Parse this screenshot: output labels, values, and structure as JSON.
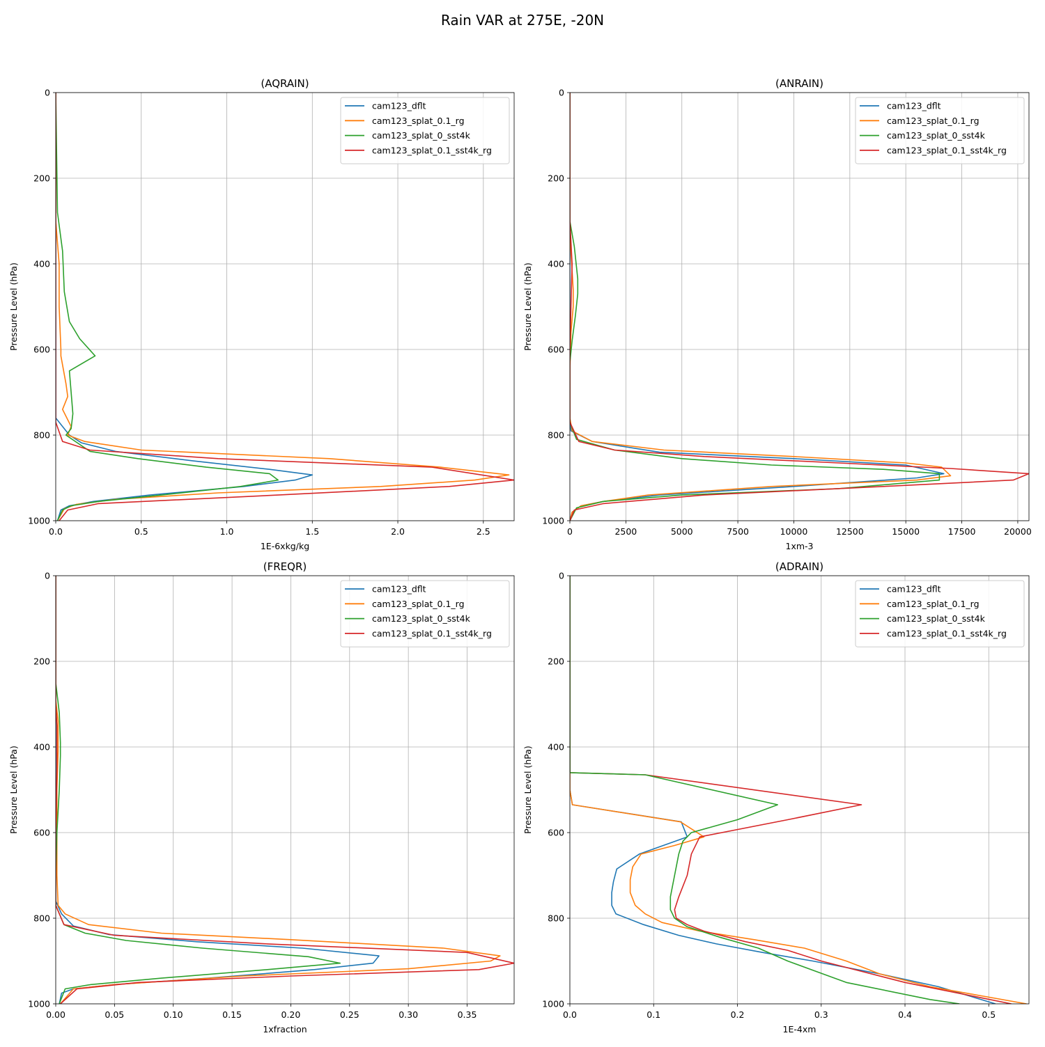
{
  "figure": {
    "suptitle": "Rain VAR at 275E, -20N"
  },
  "colors": {
    "cam123_dflt": "#1f77b4",
    "cam123_splat_0.1_rg": "#ff7f0e",
    "cam123_splat_0_sst4k": "#2ca02c",
    "cam123_splat_0.1_sst4k_rg": "#d62728"
  },
  "chart_data": [
    {
      "type": "line",
      "title": "(AQRAIN)",
      "xlabel": "1E-6xkg/kg",
      "ylabel": "Pressure Level (hPa)",
      "xlim": [
        0,
        2.68
      ],
      "ylim": [
        1000,
        0
      ],
      "xticks": [
        0.0,
        0.5,
        1.0,
        1.5,
        2.0,
        2.5
      ],
      "xtick_labels": [
        "0.0",
        "0.5",
        "1.0",
        "1.5",
        "2.0",
        "2.5"
      ],
      "yticks": [
        0,
        200,
        400,
        600,
        800,
        1000
      ],
      "ytick_labels": [
        "0",
        "200",
        "400",
        "600",
        "800",
        "1000"
      ],
      "grid": true,
      "legend": "top-right",
      "series": [
        {
          "name": "cam123_dflt",
          "x": [
            0,
            0,
            0.08,
            0.15,
            0.35,
            0.8,
            1.25,
            1.5,
            1.4,
            1.1,
            0.55,
            0.22,
            0.08,
            0.03,
            0.01
          ],
          "y": [
            0,
            760,
            800,
            818,
            838,
            860,
            880,
            893,
            905,
            920,
            940,
            955,
            965,
            975,
            1000
          ]
        },
        {
          "name": "cam123_splat_0.1_rg",
          "x": [
            0,
            0,
            0.02,
            0.02,
            0.03,
            0.03,
            0.06,
            0.07,
            0.04,
            0.09,
            0.07,
            0.17,
            0.5,
            1.6,
            2.25,
            2.65,
            2.45,
            1.9,
            0.95,
            0.35,
            0.12,
            0.05,
            0.01
          ],
          "y": [
            0,
            300,
            400,
            500,
            600,
            615,
            680,
            710,
            740,
            780,
            800,
            815,
            835,
            855,
            875,
            893,
            905,
            920,
            935,
            950,
            962,
            972,
            1000
          ]
        },
        {
          "name": "cam123_splat_0_sst4k",
          "x": [
            0,
            0.01,
            0.04,
            0.05,
            0.08,
            0.14,
            0.23,
            0.08,
            0.09,
            0.1,
            0.09,
            0.06,
            0.2,
            0.48,
            0.88,
            1.25,
            1.3,
            1.08,
            0.62,
            0.25,
            0.09,
            0.04,
            0.01
          ],
          "y": [
            0,
            280,
            370,
            465,
            535,
            575,
            615,
            650,
            700,
            750,
            785,
            800,
            838,
            855,
            875,
            890,
            905,
            920,
            940,
            955,
            965,
            975,
            1000
          ]
        },
        {
          "name": "cam123_splat_0.1_sst4k_rg",
          "x": [
            0,
            0,
            0,
            0,
            0.04,
            0.2,
            0.95,
            2.2,
            2.68,
            2.3,
            1.3,
            0.25,
            0.07,
            0.02
          ],
          "y": [
            0,
            300,
            600,
            770,
            815,
            835,
            855,
            875,
            905,
            920,
            940,
            960,
            975,
            1000
          ]
        }
      ]
    },
    {
      "type": "line",
      "title": "(ANRAIN)",
      "xlabel": "1xm-3",
      "ylabel": "Pressure Level (hPa)",
      "xlim": [
        0,
        20500
      ],
      "ylim": [
        1000,
        0
      ],
      "xticks": [
        0,
        2500,
        5000,
        7500,
        10000,
        12500,
        15000,
        17500,
        20000
      ],
      "xtick_labels": [
        "0",
        "2500",
        "5000",
        "7500",
        "10000",
        "12500",
        "15000",
        "17500",
        "20000"
      ],
      "yticks": [
        0,
        200,
        400,
        600,
        800,
        1000
      ],
      "ytick_labels": [
        "0",
        "200",
        "400",
        "600",
        "800",
        "1000"
      ],
      "grid": true,
      "legend": "top-right",
      "series": [
        {
          "name": "cam123_dflt",
          "x": [
            0,
            0,
            50,
            1000,
            4000,
            10000,
            15000,
            16700,
            15500,
            10000,
            4000,
            1500,
            500,
            100,
            0
          ],
          "y": [
            0,
            760,
            790,
            815,
            840,
            855,
            870,
            890,
            900,
            920,
            940,
            955,
            965,
            980,
            1000
          ]
        },
        {
          "name": "cam123_splat_0.1_rg",
          "x": [
            0,
            0,
            150,
            150,
            50,
            0,
            0,
            100,
            1000,
            4200,
            10000,
            15000,
            16600,
            17000,
            15500,
            9000,
            3500,
            1500,
            500,
            100,
            0
          ],
          "y": [
            0,
            330,
            460,
            500,
            560,
            650,
            760,
            790,
            815,
            835,
            850,
            865,
            875,
            895,
            905,
            920,
            940,
            955,
            965,
            980,
            1000
          ]
        },
        {
          "name": "cam123_splat_0_sst4k",
          "x": [
            0,
            0,
            200,
            350,
            350,
            250,
            100,
            0,
            0,
            300,
            2000,
            5000,
            9000,
            14000,
            16500,
            16500,
            12000,
            5000,
            1500,
            300,
            0
          ],
          "y": [
            0,
            300,
            360,
            435,
            470,
            520,
            580,
            630,
            770,
            810,
            835,
            855,
            870,
            880,
            890,
            905,
            925,
            940,
            955,
            970,
            1000
          ]
        },
        {
          "name": "cam123_splat_0.1_sst4k_rg",
          "x": [
            0,
            0,
            100,
            50,
            0,
            0,
            400,
            2000,
            6000,
            12000,
            17000,
            20500,
            19800,
            14000,
            6000,
            1500,
            200,
            0
          ],
          "y": [
            0,
            300,
            400,
            500,
            600,
            770,
            815,
            835,
            850,
            865,
            878,
            890,
            905,
            920,
            940,
            960,
            975,
            1000
          ]
        }
      ]
    },
    {
      "type": "line",
      "title": "(FREQR)",
      "xlabel": "1xfraction",
      "ylabel": "Pressure Level (hPa)",
      "xlim": [
        0,
        0.39
      ],
      "ylim": [
        1000,
        0
      ],
      "xticks": [
        0.0,
        0.05,
        0.1,
        0.15,
        0.2,
        0.25,
        0.3,
        0.35
      ],
      "xtick_labels": [
        "0.00",
        "0.05",
        "0.10",
        "0.15",
        "0.20",
        "0.25",
        "0.30",
        "0.35"
      ],
      "yticks": [
        0,
        200,
        400,
        600,
        800,
        1000
      ],
      "ytick_labels": [
        "0",
        "200",
        "400",
        "600",
        "800",
        "1000"
      ],
      "grid": true,
      "legend": "top-right",
      "series": [
        {
          "name": "cam123_dflt",
          "x": [
            0,
            0,
            0.005,
            0.015,
            0.045,
            0.12,
            0.21,
            0.275,
            0.27,
            0.22,
            0.13,
            0.05,
            0.015,
            0.005,
            0.003
          ],
          "y": [
            0,
            760,
            790,
            818,
            838,
            855,
            870,
            888,
            905,
            920,
            940,
            955,
            965,
            975,
            1000
          ]
        },
        {
          "name": "cam123_splat_0.1_rg",
          "x": [
            0,
            0,
            0.002,
            0.002,
            0.001,
            0.001,
            0.002,
            0.008,
            0.028,
            0.09,
            0.2,
            0.33,
            0.378,
            0.37,
            0.3,
            0.16,
            0.05,
            0.015,
            0.004
          ],
          "y": [
            0,
            290,
            340,
            410,
            500,
            700,
            770,
            790,
            815,
            835,
            850,
            870,
            888,
            900,
            918,
            935,
            955,
            965,
            1000
          ]
        },
        {
          "name": "cam123_splat_0_sst4k",
          "x": [
            0,
            0,
            0.003,
            0.004,
            0.004,
            0.003,
            0.001,
            0,
            0,
            0.007,
            0.025,
            0.06,
            0.125,
            0.215,
            0.242,
            0.18,
            0.09,
            0.03,
            0.008,
            0.003
          ],
          "y": [
            0,
            250,
            320,
            390,
            420,
            500,
            600,
            700,
            770,
            815,
            835,
            852,
            870,
            890,
            905,
            920,
            940,
            955,
            965,
            1000
          ]
        },
        {
          "name": "cam123_splat_0.1_sst4k_rg",
          "x": [
            0,
            0,
            0.001,
            0.001,
            0,
            0,
            0.007,
            0.05,
            0.18,
            0.35,
            0.39,
            0.36,
            0.2,
            0.07,
            0.018,
            0.004
          ],
          "y": [
            0,
            300,
            350,
            450,
            600,
            770,
            815,
            840,
            860,
            880,
            905,
            920,
            935,
            950,
            965,
            1000
          ]
        }
      ]
    },
    {
      "type": "line",
      "title": "(ADRAIN)",
      "xlabel": "1E-4xm",
      "ylabel": "Pressure Level (hPa)",
      "xlim": [
        0,
        0.548
      ],
      "ylim": [
        1000,
        0
      ],
      "xticks": [
        0.0,
        0.1,
        0.2,
        0.3,
        0.4,
        0.5
      ],
      "xtick_labels": [
        "0.0",
        "0.1",
        "0.2",
        "0.3",
        "0.4",
        "0.5"
      ],
      "yticks": [
        0,
        200,
        400,
        600,
        800,
        1000
      ],
      "ytick_labels": [
        "0",
        "200",
        "400",
        "600",
        "800",
        "1000"
      ],
      "grid": true,
      "legend": "top-right",
      "series": [
        {
          "name": "cam123_dflt",
          "x": [
            0,
            0,
            0,
            0.003,
            0.133,
            0.14,
            0.083,
            0.056,
            0.052,
            0.05,
            0.05,
            0.055,
            0.088,
            0.13,
            0.175,
            0.23,
            0.29,
            0.37,
            0.44,
            0.508
          ],
          "y": [
            0,
            300,
            500,
            535,
            575,
            610,
            650,
            685,
            715,
            740,
            770,
            790,
            815,
            840,
            860,
            880,
            900,
            930,
            960,
            1000
          ]
        },
        {
          "name": "cam123_splat_0.1_rg",
          "x": [
            0,
            0,
            0,
            0.003,
            0.132,
            0.16,
            0.125,
            0.085,
            0.075,
            0.072,
            0.072,
            0.078,
            0.09,
            0.11,
            0.155,
            0.22,
            0.28,
            0.33,
            0.37,
            0.43,
            0.545
          ],
          "y": [
            0,
            300,
            500,
            535,
            575,
            610,
            630,
            650,
            680,
            710,
            740,
            770,
            790,
            810,
            830,
            850,
            870,
            900,
            930,
            960,
            1000
          ]
        },
        {
          "name": "cam123_splat_0.1_sst4k_rg",
          "x": [
            0,
            0,
            0,
            0.09,
            0.348,
            0.26,
            0.155,
            0.145,
            0.14,
            0.13,
            0.125,
            0.127,
            0.14,
            0.16,
            0.21,
            0.26,
            0.3,
            0.4,
            0.527
          ],
          "y": [
            0,
            300,
            460,
            465,
            535,
            570,
            610,
            650,
            700,
            750,
            780,
            800,
            815,
            830,
            855,
            875,
            900,
            950,
            1000
          ]
        },
        {
          "name": "cam123_splat_0_sst4k",
          "x": [
            0,
            0,
            0,
            0.09,
            0.248,
            0.2,
            0.145,
            0.135,
            0.13,
            0.125,
            0.12,
            0.12,
            0.125,
            0.14,
            0.18,
            0.225,
            0.26,
            0.33,
            0.43,
            0.465
          ],
          "y": [
            0,
            300,
            460,
            465,
            535,
            570,
            600,
            620,
            650,
            700,
            750,
            780,
            800,
            820,
            845,
            870,
            900,
            950,
            990,
            1000
          ]
        }
      ]
    }
  ]
}
